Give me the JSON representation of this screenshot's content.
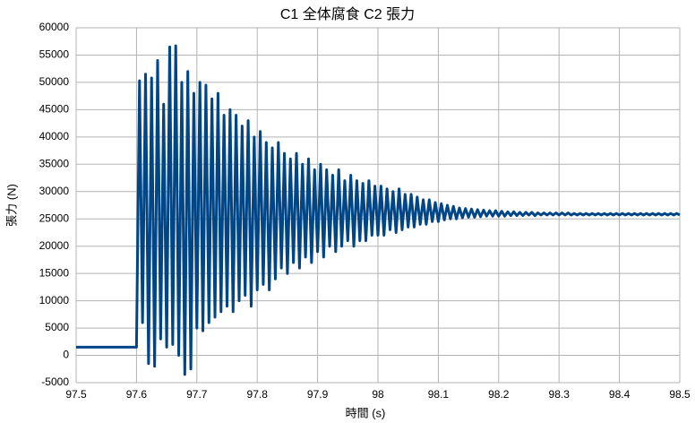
{
  "chart_data": {
    "type": "line",
    "title": "C1 全体腐食 C2 張力",
    "x_label": "時間 (s)",
    "y_label": "張力 (N)",
    "xlim": [
      97.5,
      98.5
    ],
    "xticks": [
      97.5,
      97.6,
      97.7,
      97.8,
      97.9,
      98,
      98.1,
      98.2,
      98.3,
      98.4,
      98.5
    ],
    "ylim": [
      -5000,
      60000
    ],
    "yticks": [
      -5000,
      0,
      5000,
      10000,
      15000,
      20000,
      25000,
      30000,
      35000,
      40000,
      45000,
      50000,
      55000,
      60000
    ],
    "grid": true,
    "x": [
      97.5,
      97.6,
      97.605,
      97.61,
      97.615,
      97.62,
      97.625,
      97.63,
      97.635,
      97.64,
      97.645,
      97.65,
      97.655,
      97.66,
      97.665,
      97.67,
      97.675,
      97.68,
      97.685,
      97.69,
      97.695,
      97.7,
      97.705,
      97.71,
      97.715,
      97.72,
      97.725,
      97.73,
      97.735,
      97.74,
      97.745,
      97.75,
      97.755,
      97.76,
      97.765,
      97.77,
      97.775,
      97.78,
      97.785,
      97.79,
      97.795,
      97.8,
      97.805,
      97.81,
      97.815,
      97.82,
      97.825,
      97.83,
      97.835,
      97.84,
      97.845,
      97.85,
      97.855,
      97.86,
      97.865,
      97.87,
      97.875,
      97.88,
      97.885,
      97.89,
      97.895,
      97.9,
      97.905,
      97.91,
      97.915,
      97.92,
      97.925,
      97.93,
      97.935,
      97.94,
      97.945,
      97.95,
      97.955,
      97.96,
      97.965,
      97.97,
      97.975,
      97.98,
      97.985,
      97.99,
      97.995,
      98.0,
      98.005,
      98.01,
      98.015,
      98.02,
      98.025,
      98.03,
      98.035,
      98.04,
      98.045,
      98.05,
      98.055,
      98.06,
      98.065,
      98.07,
      98.075,
      98.08,
      98.085,
      98.09,
      98.095,
      98.1,
      98.105,
      98.11,
      98.115,
      98.12,
      98.125,
      98.13,
      98.135,
      98.14,
      98.145,
      98.15,
      98.155,
      98.16,
      98.165,
      98.17,
      98.175,
      98.18,
      98.185,
      98.19,
      98.195,
      98.2,
      98.205,
      98.21,
      98.215,
      98.22,
      98.225,
      98.23,
      98.235,
      98.24,
      98.245,
      98.25,
      98.255,
      98.26,
      98.265,
      98.27,
      98.275,
      98.28,
      98.285,
      98.29,
      98.295,
      98.3,
      98.305,
      98.31,
      98.315,
      98.32,
      98.325,
      98.33,
      98.335,
      98.34,
      98.345,
      98.35,
      98.355,
      98.36,
      98.365,
      98.37,
      98.375,
      98.38,
      98.385,
      98.39,
      98.395,
      98.4,
      98.405,
      98.41,
      98.415,
      98.42,
      98.425,
      98.43,
      98.435,
      98.44,
      98.445,
      98.45,
      98.455,
      98.46,
      98.465,
      98.47,
      98.475,
      98.48,
      98.485,
      98.49,
      98.495,
      98.5
    ],
    "series": [
      {
        "color": "#004586",
        "values": [
          1500,
          1500,
          50300,
          6000,
          51500,
          -1500,
          50800,
          -2000,
          54000,
          3000,
          46000,
          1500,
          56500,
          2000,
          56700,
          0,
          50000,
          -3500,
          52000,
          -2500,
          48000,
          5000,
          50000,
          4500,
          49500,
          6000,
          47000,
          7000,
          48000,
          8000,
          44000,
          9000,
          45000,
          8000,
          44000,
          10000,
          42000,
          11000,
          43000,
          9000,
          40000,
          12000,
          41000,
          13000,
          39000,
          12000,
          38000,
          14000,
          39000,
          16000,
          37000,
          15000,
          36000,
          17000,
          37000,
          16000,
          35000,
          18000,
          36000,
          17000,
          34000,
          19000,
          35000,
          18000,
          34000,
          20000,
          33000,
          19000,
          34000,
          20000,
          32000,
          21000,
          33000,
          20000,
          32000,
          21000,
          31500,
          21000,
          32000,
          22000,
          31000,
          22000,
          31000,
          22000,
          30500,
          23000,
          30000,
          22500,
          30500,
          23000,
          29500,
          23500,
          29500,
          23500,
          29000,
          24000,
          28500,
          24000,
          28500,
          24500,
          28000,
          24500,
          27800,
          24800,
          27500,
          25000,
          27300,
          25000,
          27000,
          25200,
          26900,
          25300,
          26800,
          25300,
          26700,
          25400,
          26600,
          25500,
          26500,
          25500,
          26500,
          25500,
          26400,
          25500,
          26300,
          25600,
          26300,
          25600,
          26200,
          25600,
          26200,
          25700,
          26200,
          25600,
          26100,
          25700,
          26100,
          25700,
          26100,
          25700,
          26100,
          25700,
          26100,
          25700,
          26100,
          25700,
          26000,
          25700,
          26000,
          25700,
          26000,
          25700,
          26000,
          25700,
          26000,
          25700,
          26000,
          25700,
          26000,
          25700,
          26000,
          25700,
          26000,
          25700,
          26000,
          25700,
          26000,
          25700,
          26000,
          25700,
          26000,
          25700,
          26000,
          25700,
          26000,
          25700,
          26000,
          25700,
          26000,
          25700,
          26000,
          25700
        ]
      }
    ]
  }
}
